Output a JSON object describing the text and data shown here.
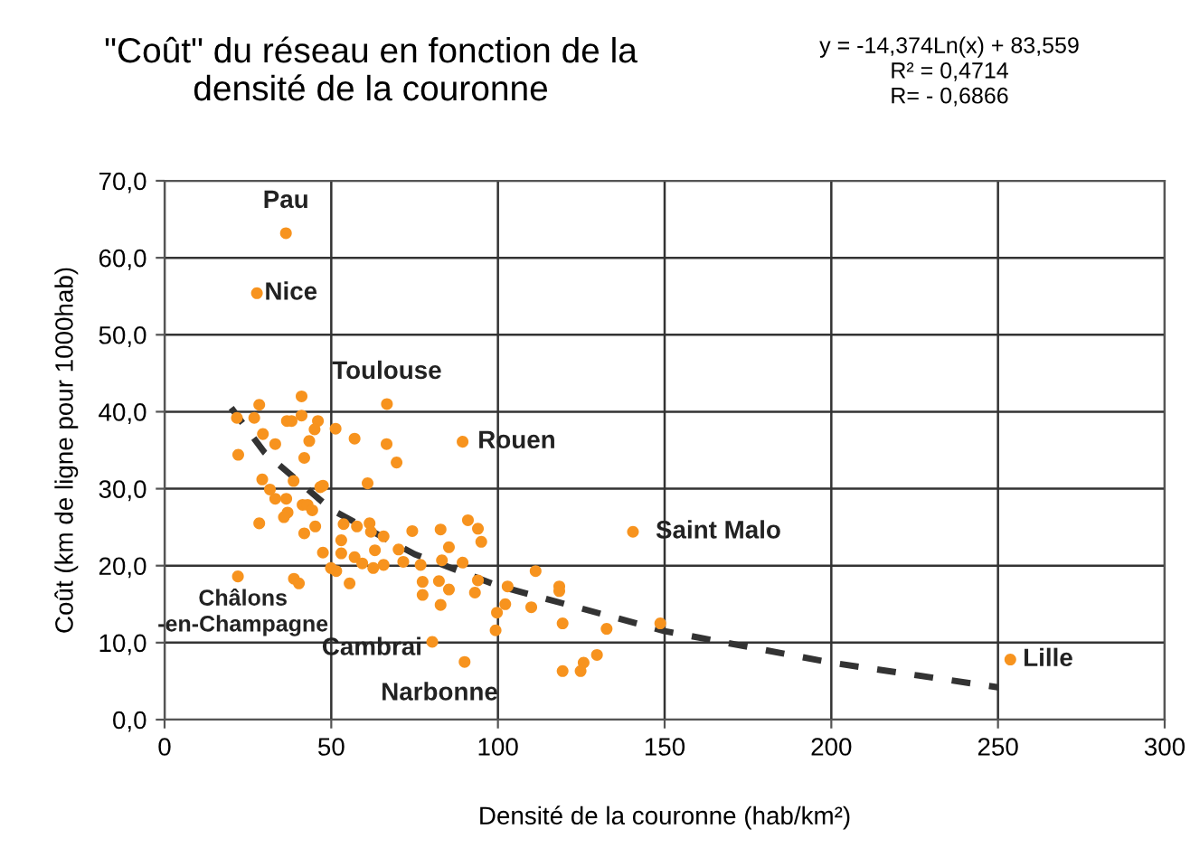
{
  "chart_data": {
    "type": "scatter",
    "title": "\"Coût\" du réseau en fonction de la\ndensité de la couronne",
    "xlabel": "Densité de la couronne (hab/km²)",
    "ylabel": "Coût (km de ligne pour 1000hab)",
    "xlim": [
      0,
      300
    ],
    "xticks": [
      0,
      50,
      100,
      150,
      200,
      250,
      300
    ],
    "ylim": [
      0,
      70
    ],
    "yticks": [
      {
        "value": 0,
        "label": "0,0"
      },
      {
        "value": 10,
        "label": "10,0"
      },
      {
        "value": 20,
        "label": "20,0"
      },
      {
        "value": 30,
        "label": "30,0"
      },
      {
        "value": 40,
        "label": "40,0"
      },
      {
        "value": 50,
        "label": "50,0"
      },
      {
        "value": 60,
        "label": "60,0"
      },
      {
        "value": 70,
        "label": "70,0"
      }
    ],
    "grid": true,
    "series": [
      {
        "color": "#f7931e",
        "marker": "circle",
        "x": [
          36.4,
          27.7,
          66.7,
          89.4,
          140.5,
          253.7,
          80.3,
          90,
          22,
          22.1,
          29.3,
          38.7,
          31.6,
          33.2,
          36.5,
          36.9,
          35.8,
          41.4,
          42.9,
          44.3,
          46.7,
          47.5,
          28.4,
          45.2,
          41.9,
          47.5,
          49.9,
          51.5,
          53.0,
          53.7,
          57.7,
          53.0,
          55.5,
          57.0,
          59.3,
          61.5,
          61.9,
          63.1,
          62.6,
          65.7,
          65.7,
          60.9,
          69.6,
          66.6,
          57.0,
          43.4,
          33.2,
          41.9,
          38.8,
          40.3,
          70.2,
          71.6,
          74.3,
          76.8,
          77.4,
          77.4,
          82.3,
          82.8,
          83.2,
          85.3,
          85.3,
          82.8,
          89.4,
          91.0,
          94.0,
          95.0,
          94.0,
          93.1,
          99.7,
          99.3,
          102.2,
          41.1,
          28.4,
          21.7,
          26.9,
          36.7,
          38.1,
          41.1,
          46.0,
          45.0,
          51.3,
          29.5,
          111.3,
          102.9,
          110.0,
          118.4,
          118.4,
          119.4,
          132.6,
          148.7,
          129.7,
          125.7,
          124.8,
          119.4
        ],
        "values": [
          63.2,
          55.4,
          41.0,
          36.1,
          24.4,
          7.8,
          10.1,
          7.5,
          18.6,
          34.4,
          31.2,
          31.0,
          29.9,
          28.7,
          28.7,
          26.9,
          26.3,
          27.9,
          27.9,
          27.2,
          30.2,
          30.4,
          25.5,
          25.1,
          24.2,
          21.7,
          19.7,
          19.3,
          21.6,
          25.4,
          25.1,
          23.3,
          17.7,
          21.1,
          20.3,
          25.5,
          24.4,
          22.0,
          19.7,
          20.1,
          23.8,
          30.7,
          33.4,
          35.8,
          36.5,
          36.2,
          35.8,
          34.0,
          18.3,
          17.7,
          22.1,
          20.5,
          24.5,
          20.1,
          17.9,
          16.2,
          18.0,
          24.7,
          20.7,
          22.4,
          16.9,
          14.9,
          20.4,
          25.9,
          24.8,
          23.1,
          18.1,
          16.5,
          13.9,
          11.6,
          15.0,
          42.0,
          40.9,
          39.2,
          39.2,
          38.8,
          38.8,
          39.5,
          38.8,
          37.7,
          37.8,
          37.1,
          19.3,
          17.3,
          14.6,
          17.3,
          16.7,
          12.5,
          11.8,
          12.5,
          8.4,
          7.4,
          6.3,
          6.3
        ]
      },
      {
        "type": "line",
        "color": "#333333",
        "line_style": "dashed",
        "marker": "none",
        "x": [
          20,
          30,
          50,
          75,
          100,
          150,
          200,
          250
        ],
        "values": [
          40.5,
          34.7,
          27.3,
          21.5,
          17.4,
          11.5,
          7.4,
          4.2
        ]
      }
    ],
    "annotations": [
      {
        "text": "Pau",
        "x": 36.4,
        "y": 63.2
      },
      {
        "text": "Nice",
        "x": 27.7,
        "y": 55.4
      },
      {
        "text": "Toulouse",
        "x": 66.7,
        "y": 41.0
      },
      {
        "text": "Rouen",
        "x": 89.4,
        "y": 36.1
      },
      {
        "text": "Saint Malo",
        "x": 140.5,
        "y": 24.4
      },
      {
        "text": "Lille",
        "x": 253.7,
        "y": 7.8
      },
      {
        "text": "Cambrai",
        "x": 80.3,
        "y": 10.1
      },
      {
        "text": "Narbonne",
        "x": 90,
        "y": 7.5
      },
      {
        "text": "Châlons\n-en-Champagne",
        "x": 22,
        "y": 18.6
      },
      "y = -14,374Ln(x) + 83,559\nR² = 0,4714\nR= - 0,6866"
    ]
  }
}
